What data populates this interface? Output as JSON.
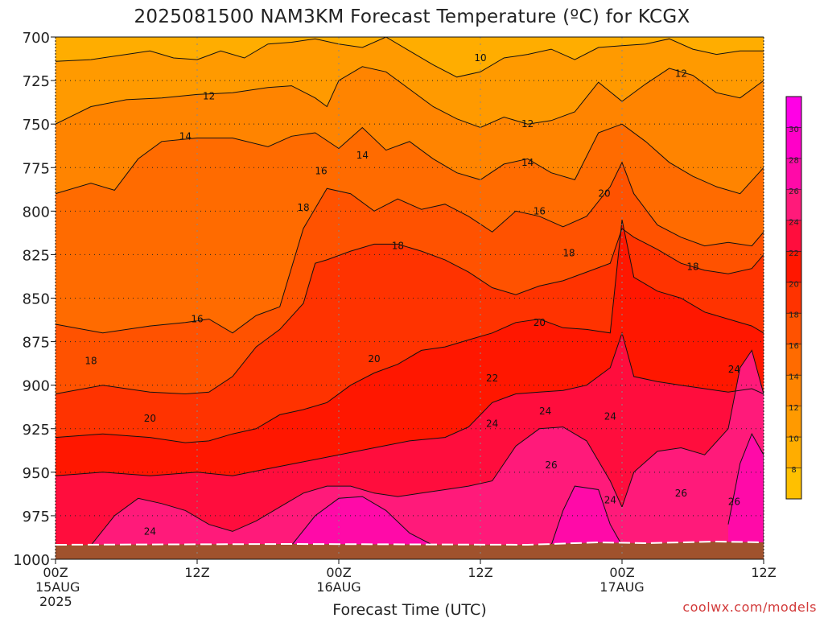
{
  "title": "2025081500 NAM3KM Forecast Temperature (ºC) for KCGX",
  "credit": "coolwx.com/models",
  "chart_data": {
    "type": "heatmap",
    "title": "2025081500 NAM3KM Forecast Temperature (ºC) for KCGX",
    "xlabel": "Forecast Time (UTC)",
    "ylabel": "",
    "y_axis": {
      "ticks": [
        700,
        725,
        750,
        775,
        800,
        825,
        850,
        875,
        900,
        925,
        950,
        975,
        1000
      ],
      "range": [
        700,
        1000
      ],
      "inverted": true
    },
    "x_axis": {
      "range_hours": [
        0,
        60
      ],
      "ticks": [
        {
          "hour": 0,
          "label": "00Z",
          "sublabel": "15AUG",
          "sublabel2": "2025"
        },
        {
          "hour": 12,
          "label": "12Z",
          "sublabel": "",
          "sublabel2": ""
        },
        {
          "hour": 24,
          "label": "00Z",
          "sublabel": "16AUG",
          "sublabel2": ""
        },
        {
          "hour": 36,
          "label": "12Z",
          "sublabel": "",
          "sublabel2": ""
        },
        {
          "hour": 48,
          "label": "00Z",
          "sublabel": "17AUG",
          "sublabel2": ""
        },
        {
          "hour": 60,
          "label": "12Z",
          "sublabel": "",
          "sublabel2": ""
        }
      ]
    },
    "grid": true,
    "colorbar": {
      "placement": "right",
      "levels": [
        8,
        10,
        12,
        14,
        16,
        18,
        20,
        22,
        24,
        26,
        28,
        30
      ],
      "colors": [
        "#ffc000",
        "#ffad00",
        "#ff9a00",
        "#ff8400",
        "#ff6b00",
        "#ff5200",
        "#ff3300",
        "#ff1700",
        "#ff0d3d",
        "#ff1a7a",
        "#ff0aa8",
        "#ff00c8",
        "#ff00e6"
      ]
    },
    "surface_color": "#a0522d",
    "contours": [
      {
        "level": 10,
        "points": [
          [
            0,
            714
          ],
          [
            3,
            713
          ],
          [
            6,
            710
          ],
          [
            8,
            708
          ],
          [
            10,
            712
          ],
          [
            12,
            713
          ],
          [
            14,
            708
          ],
          [
            16,
            712
          ],
          [
            18,
            704
          ],
          [
            20,
            703
          ],
          [
            22,
            701
          ],
          [
            24,
            704
          ],
          [
            26,
            706
          ],
          [
            28,
            700
          ],
          [
            30,
            708
          ],
          [
            32,
            716
          ],
          [
            34,
            723
          ],
          [
            36,
            720
          ],
          [
            38,
            712
          ],
          [
            40,
            710
          ],
          [
            42,
            707
          ],
          [
            44,
            713
          ],
          [
            46,
            706
          ],
          [
            48,
            705
          ],
          [
            50,
            704
          ],
          [
            52,
            701
          ],
          [
            54,
            707
          ],
          [
            56,
            710
          ],
          [
            58,
            708
          ],
          [
            60,
            708
          ]
        ]
      },
      {
        "level": 12,
        "points": [
          [
            0,
            750
          ],
          [
            3,
            740
          ],
          [
            6,
            736
          ],
          [
            9,
            735
          ],
          [
            12,
            733
          ],
          [
            15,
            732
          ],
          [
            18,
            729
          ],
          [
            20,
            728
          ],
          [
            22,
            735
          ],
          [
            23,
            740
          ],
          [
            24,
            725
          ],
          [
            26,
            717
          ],
          [
            28,
            720
          ],
          [
            30,
            730
          ],
          [
            32,
            740
          ],
          [
            34,
            747
          ],
          [
            36,
            752
          ],
          [
            38,
            746
          ],
          [
            40,
            750
          ],
          [
            42,
            748
          ],
          [
            44,
            743
          ],
          [
            46,
            726
          ],
          [
            48,
            737
          ],
          [
            50,
            727
          ],
          [
            52,
            718
          ],
          [
            54,
            722
          ],
          [
            56,
            732
          ],
          [
            58,
            735
          ],
          [
            60,
            725
          ]
        ]
      },
      {
        "level": 14,
        "points": [
          [
            0,
            790
          ],
          [
            3,
            784
          ],
          [
            5,
            788
          ],
          [
            7,
            770
          ],
          [
            9,
            760
          ],
          [
            12,
            758
          ],
          [
            15,
            758
          ],
          [
            18,
            763
          ],
          [
            20,
            757
          ],
          [
            22,
            755
          ],
          [
            24,
            764
          ],
          [
            26,
            752
          ],
          [
            28,
            765
          ],
          [
            30,
            760
          ],
          [
            32,
            770
          ],
          [
            34,
            778
          ],
          [
            36,
            782
          ],
          [
            38,
            773
          ],
          [
            40,
            770
          ],
          [
            42,
            778
          ],
          [
            44,
            782
          ],
          [
            46,
            755
          ],
          [
            48,
            750
          ],
          [
            50,
            760
          ],
          [
            52,
            772
          ],
          [
            54,
            780
          ],
          [
            56,
            786
          ],
          [
            58,
            790
          ],
          [
            60,
            775
          ]
        ]
      },
      {
        "level": 16,
        "points": [
          [
            0,
            865
          ],
          [
            4,
            870
          ],
          [
            8,
            866
          ],
          [
            11,
            864
          ],
          [
            13,
            862
          ],
          [
            15,
            870
          ],
          [
            17,
            860
          ],
          [
            19,
            855
          ],
          [
            21,
            810
          ],
          [
            23,
            787
          ],
          [
            25,
            790
          ],
          [
            27,
            800
          ],
          [
            29,
            793
          ],
          [
            31,
            799
          ],
          [
            33,
            796
          ],
          [
            35,
            803
          ],
          [
            37,
            812
          ],
          [
            39,
            800
          ],
          [
            41,
            803
          ],
          [
            43,
            809
          ],
          [
            45,
            803
          ],
          [
            47,
            786
          ],
          [
            48,
            772
          ],
          [
            49,
            790
          ],
          [
            51,
            808
          ],
          [
            53,
            815
          ],
          [
            55,
            820
          ],
          [
            57,
            818
          ],
          [
            59,
            820
          ],
          [
            60,
            812
          ]
        ]
      },
      {
        "level": 18,
        "points": [
          [
            0,
            905
          ],
          [
            4,
            900
          ],
          [
            8,
            904
          ],
          [
            11,
            905
          ],
          [
            13,
            904
          ],
          [
            15,
            895
          ],
          [
            17,
            878
          ],
          [
            19,
            868
          ],
          [
            21,
            853
          ],
          [
            22,
            830
          ],
          [
            23,
            828
          ],
          [
            25,
            823
          ],
          [
            27,
            819
          ],
          [
            29,
            819
          ],
          [
            31,
            823
          ],
          [
            33,
            828
          ],
          [
            35,
            835
          ],
          [
            37,
            844
          ],
          [
            39,
            848
          ],
          [
            41,
            843
          ],
          [
            43,
            840
          ],
          [
            45,
            835
          ],
          [
            47,
            830
          ],
          [
            48,
            810
          ],
          [
            49,
            815
          ],
          [
            51,
            822
          ],
          [
            53,
            830
          ],
          [
            55,
            834
          ],
          [
            57,
            836
          ],
          [
            59,
            833
          ],
          [
            60,
            825
          ]
        ]
      },
      {
        "level": 20,
        "points": [
          [
            0,
            930
          ],
          [
            4,
            928
          ],
          [
            8,
            930
          ],
          [
            11,
            933
          ],
          [
            13,
            932
          ],
          [
            15,
            928
          ],
          [
            17,
            925
          ],
          [
            19,
            917
          ],
          [
            21,
            914
          ],
          [
            23,
            910
          ],
          [
            25,
            900
          ],
          [
            27,
            893
          ],
          [
            29,
            888
          ],
          [
            31,
            880
          ],
          [
            33,
            878
          ],
          [
            35,
            874
          ],
          [
            37,
            870
          ],
          [
            39,
            864
          ],
          [
            41,
            862
          ],
          [
            43,
            867
          ],
          [
            45,
            868
          ],
          [
            47,
            870
          ],
          [
            48,
            805
          ],
          [
            49,
            838
          ],
          [
            51,
            846
          ],
          [
            53,
            850
          ],
          [
            55,
            858
          ],
          [
            57,
            862
          ],
          [
            59,
            866
          ],
          [
            60,
            870
          ]
        ]
      },
      {
        "level": 22,
        "points": [
          [
            0,
            952
          ],
          [
            4,
            950
          ],
          [
            8,
            952
          ],
          [
            12,
            950
          ],
          [
            15,
            952
          ],
          [
            18,
            948
          ],
          [
            21,
            944
          ],
          [
            24,
            940
          ],
          [
            27,
            936
          ],
          [
            30,
            932
          ],
          [
            33,
            930
          ],
          [
            35,
            924
          ],
          [
            37,
            910
          ],
          [
            39,
            905
          ],
          [
            41,
            904
          ],
          [
            43,
            903
          ],
          [
            45,
            900
          ],
          [
            47,
            890
          ],
          [
            48,
            870
          ],
          [
            49,
            895
          ],
          [
            51,
            898
          ],
          [
            53,
            900
          ],
          [
            55,
            902
          ],
          [
            57,
            904
          ],
          [
            59,
            902
          ],
          [
            60,
            905
          ]
        ]
      },
      {
        "level": 24,
        "points": [
          [
            3,
            992
          ],
          [
            5,
            975
          ],
          [
            7,
            965
          ],
          [
            9,
            968
          ],
          [
            11,
            972
          ],
          [
            13,
            980
          ],
          [
            15,
            984
          ],
          [
            17,
            978
          ],
          [
            19,
            970
          ],
          [
            21,
            962
          ],
          [
            23,
            958
          ],
          [
            25,
            958
          ],
          [
            27,
            962
          ],
          [
            29,
            964
          ],
          [
            31,
            962
          ],
          [
            33,
            960
          ],
          [
            35,
            958
          ],
          [
            37,
            955
          ],
          [
            39,
            935
          ],
          [
            41,
            925
          ],
          [
            43,
            924
          ],
          [
            45,
            932
          ],
          [
            47,
            955
          ],
          [
            48,
            970
          ],
          [
            49,
            950
          ],
          [
            51,
            938
          ],
          [
            53,
            936
          ],
          [
            55,
            940
          ],
          [
            57,
            925
          ],
          [
            58,
            890
          ],
          [
            59,
            880
          ],
          [
            60,
            905
          ]
        ]
      },
      {
        "level": 26,
        "points": [
          [
            20,
            992
          ],
          [
            22,
            975
          ],
          [
            24,
            965
          ],
          [
            26,
            964
          ],
          [
            28,
            972
          ],
          [
            30,
            985
          ],
          [
            32,
            992
          ]
        ]
      },
      {
        "level": 26,
        "points": [
          [
            42,
            992
          ],
          [
            43,
            972
          ],
          [
            44,
            958
          ],
          [
            46,
            960
          ],
          [
            47,
            980
          ],
          [
            48,
            992
          ]
        ]
      },
      {
        "level": 26,
        "points": [
          [
            57,
            980
          ],
          [
            58,
            945
          ],
          [
            59,
            928
          ],
          [
            60,
            940
          ],
          [
            60,
            992
          ]
        ]
      }
    ],
    "contour_labels": [
      {
        "text": "10",
        "hour": 36.0,
        "p": 712
      },
      {
        "text": "12",
        "hour": 13.0,
        "p": 734
      },
      {
        "text": "12",
        "hour": 40.0,
        "p": 750
      },
      {
        "text": "12",
        "hour": 53.0,
        "p": 721
      },
      {
        "text": "14",
        "hour": 11.0,
        "p": 757
      },
      {
        "text": "14",
        "hour": 26.0,
        "p": 768
      },
      {
        "text": "14",
        "hour": 40.0,
        "p": 772
      },
      {
        "text": "16",
        "hour": 22.5,
        "p": 777
      },
      {
        "text": "16",
        "hour": 12.0,
        "p": 862
      },
      {
        "text": "16",
        "hour": 41.0,
        "p": 800
      },
      {
        "text": "18",
        "hour": 21.0,
        "p": 798
      },
      {
        "text": "18",
        "hour": 29.0,
        "p": 820
      },
      {
        "text": "18",
        "hour": 43.5,
        "p": 824
      },
      {
        "text": "18",
        "hour": 54.0,
        "p": 832
      },
      {
        "text": "18",
        "hour": 3.0,
        "p": 886
      },
      {
        "text": "20",
        "hour": 46.5,
        "p": 790
      },
      {
        "text": "20",
        "hour": 41.0,
        "p": 864
      },
      {
        "text": "20",
        "hour": 27.0,
        "p": 885
      },
      {
        "text": "20",
        "hour": 8.0,
        "p": 919
      },
      {
        "text": "22",
        "hour": 37.0,
        "p": 896
      },
      {
        "text": "24",
        "hour": 37.0,
        "p": 922
      },
      {
        "text": "24",
        "hour": 41.5,
        "p": 915
      },
      {
        "text": "24",
        "hour": 47.0,
        "p": 918
      },
      {
        "text": "24",
        "hour": 47.0,
        "p": 966
      },
      {
        "text": "24",
        "hour": 57.5,
        "p": 891
      },
      {
        "text": "24",
        "hour": 8.0,
        "p": 984
      },
      {
        "text": "26",
        "hour": 42.0,
        "p": 946
      },
      {
        "text": "26",
        "hour": 53.0,
        "p": 962
      },
      {
        "text": "26",
        "hour": 57.5,
        "p": 967
      }
    ]
  }
}
